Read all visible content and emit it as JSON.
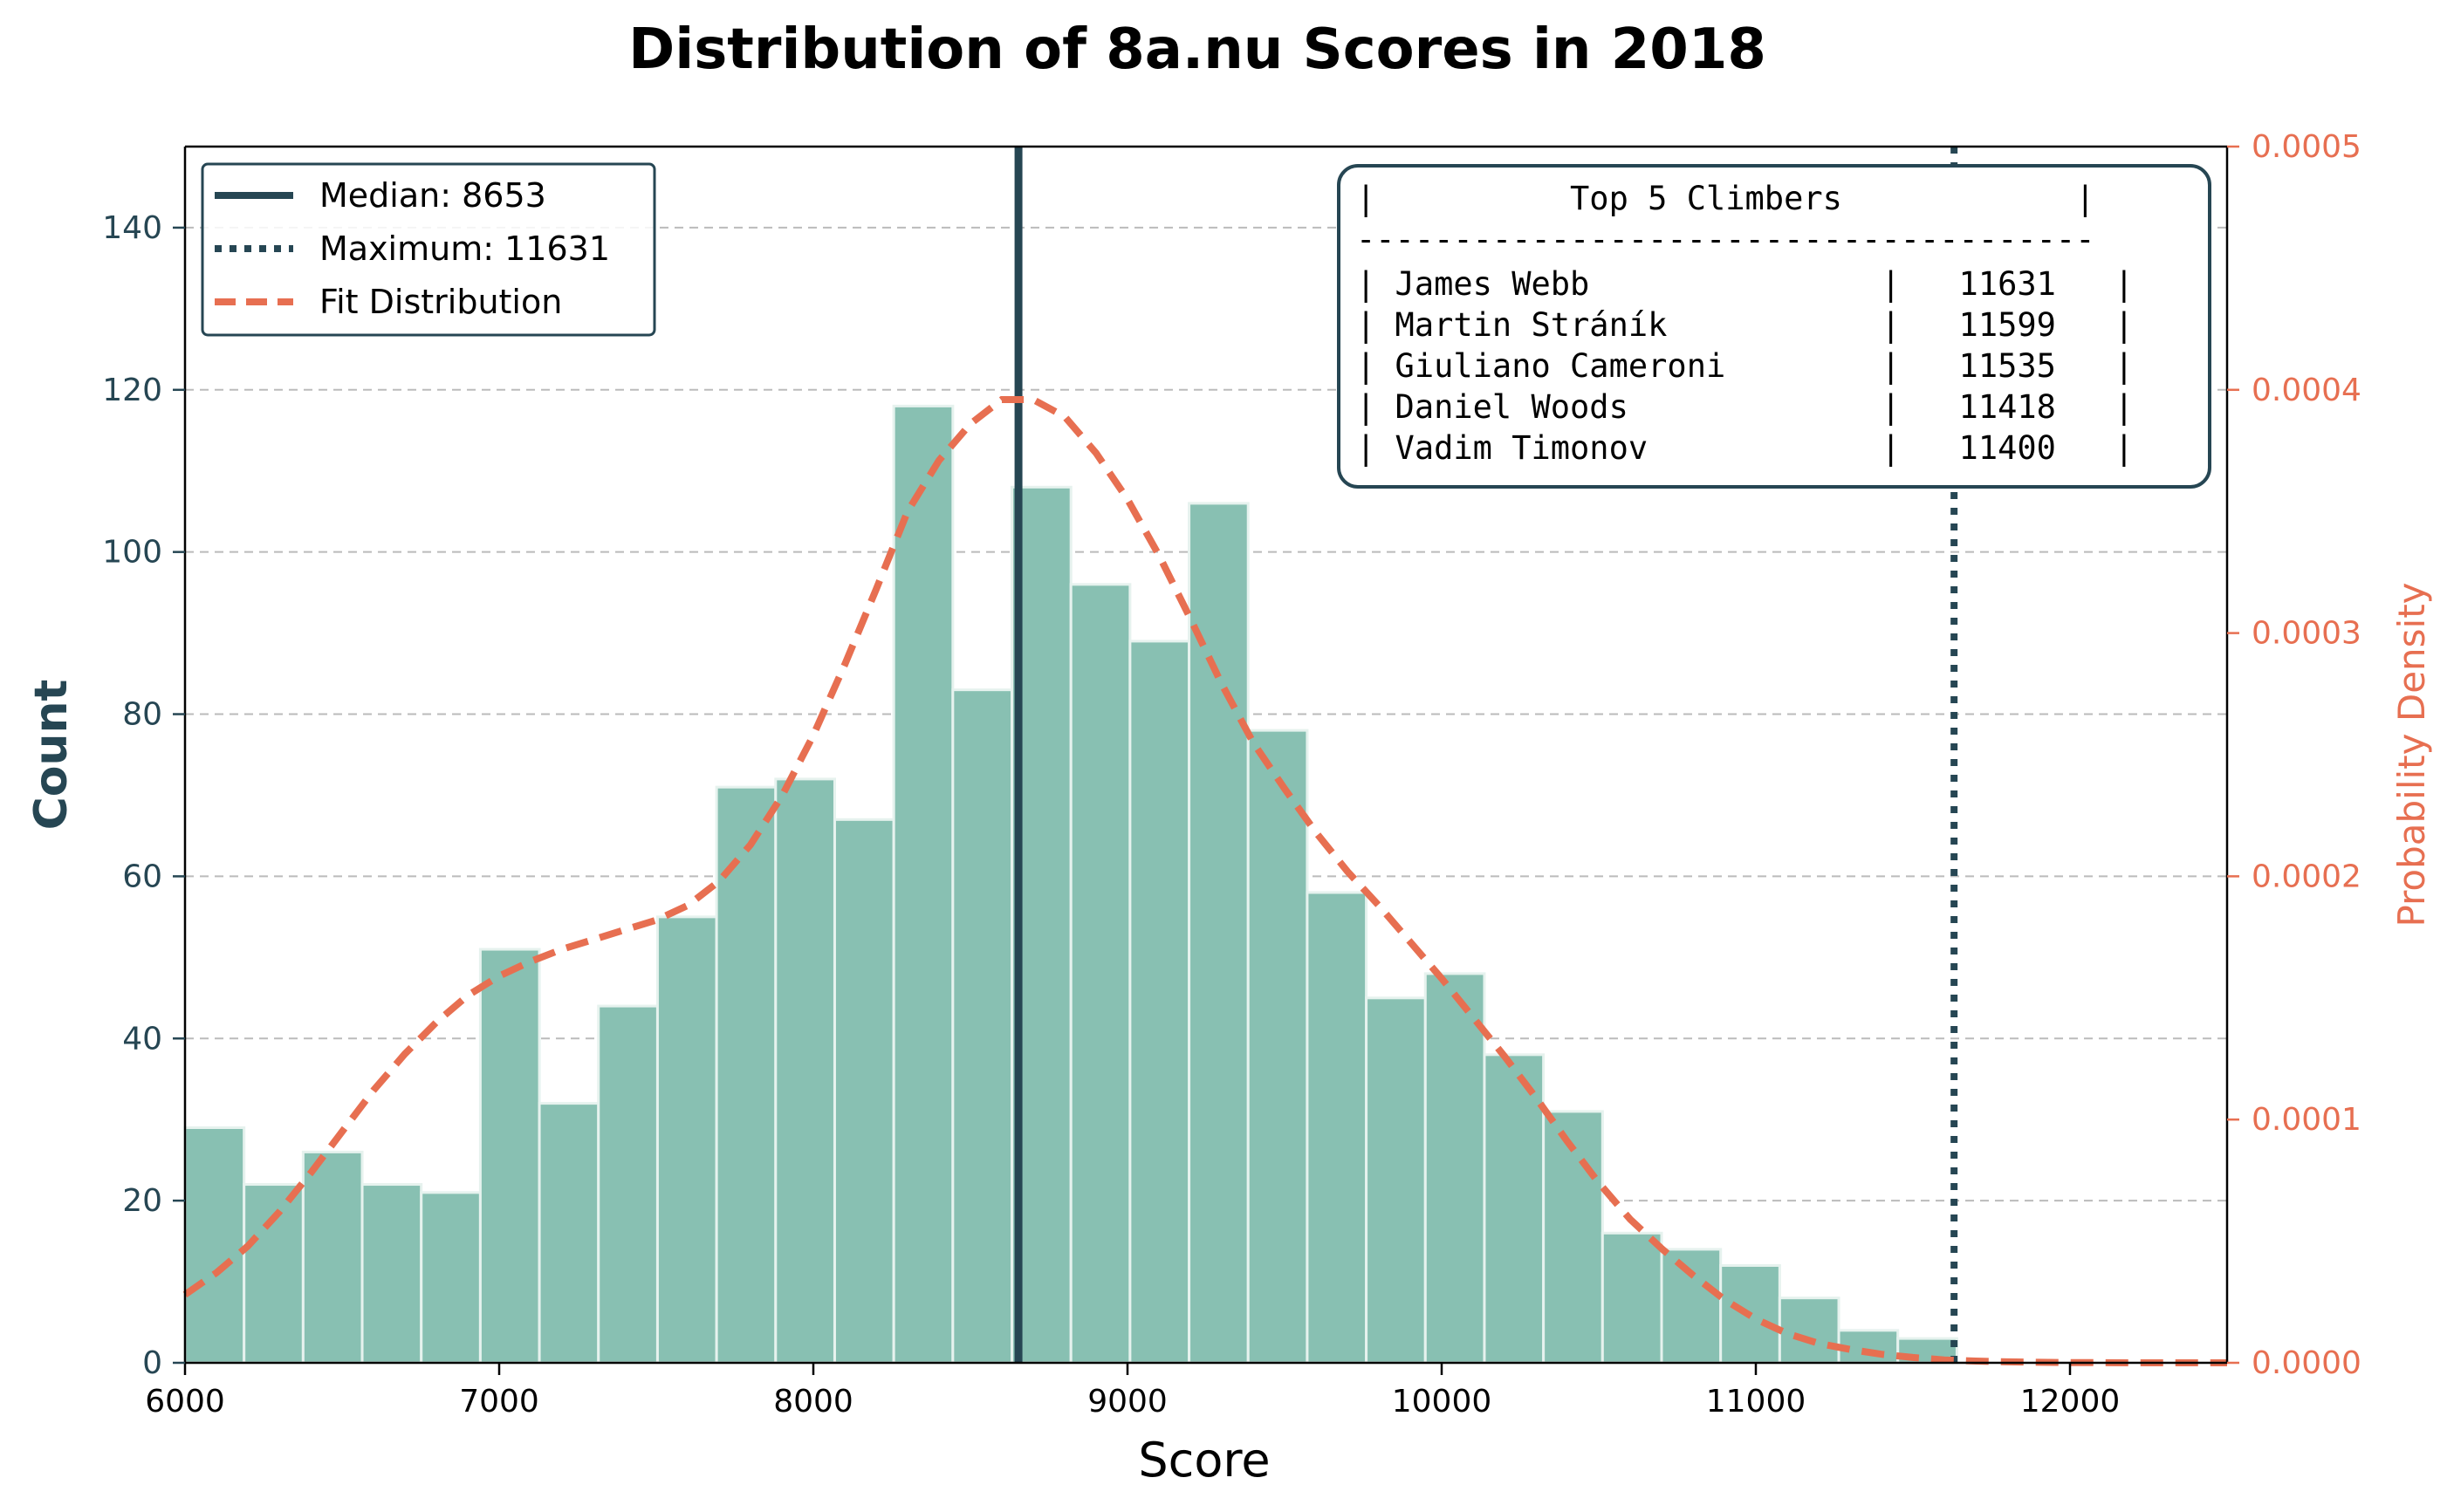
{
  "chart_data": {
    "type": "bar",
    "title": "Distribution of 8a.nu Scores in 2018",
    "xlabel": "Score",
    "ylabel": "Count",
    "y2label": "Probability Density",
    "xlim": [
      6000,
      12500
    ],
    "ylim": [
      0,
      150
    ],
    "y2lim": [
      0,
      0.0005
    ],
    "grid": "y-dashed",
    "x_ticks": [
      6000,
      7000,
      8000,
      9000,
      10000,
      11000,
      12000
    ],
    "y_ticks": [
      0,
      20,
      40,
      60,
      80,
      100,
      120,
      140
    ],
    "y2_ticks": [
      "0.0000",
      "0.0001",
      "0.0002",
      "0.0003",
      "0.0004",
      "0.0005"
    ],
    "bin_width": 188,
    "bins_start": [
      6000,
      6188,
      6376,
      6564,
      6752,
      6940,
      7128,
      7316,
      7504,
      7692,
      7880,
      8068,
      8256,
      8444,
      8632,
      8820,
      9008,
      9196,
      9384,
      9572,
      9760,
      9948,
      10136,
      10324,
      10512,
      10700,
      10888,
      11076,
      11264,
      11452
    ],
    "counts": [
      29,
      22,
      26,
      22,
      21,
      51,
      32,
      44,
      55,
      71,
      72,
      67,
      118,
      83,
      108,
      96,
      89,
      106,
      78,
      58,
      45,
      48,
      38,
      31,
      16,
      14,
      12,
      8,
      4,
      3
    ],
    "fit_x": [
      6000,
      6100,
      6200,
      6300,
      6400,
      6500,
      6600,
      6700,
      6800,
      6900,
      7000,
      7100,
      7200,
      7300,
      7400,
      7500,
      7600,
      7700,
      7800,
      7900,
      8000,
      8100,
      8200,
      8300,
      8400,
      8500,
      8600,
      8700,
      8800,
      8900,
      9000,
      9100,
      9200,
      9300,
      9400,
      9500,
      9600,
      9700,
      9800,
      9900,
      10000,
      10100,
      10200,
      10300,
      10400,
      10500,
      10600,
      10700,
      10800,
      10900,
      11000,
      11100,
      11200,
      11300,
      11400,
      11500,
      11600,
      11700,
      11800,
      11900,
      12000,
      12200,
      12500
    ],
    "fit_y": [
      2.8e-05,
      3.7e-05,
      4.8e-05,
      6.2e-05,
      7.8e-05,
      9.5e-05,
      0.000112,
      0.000127,
      0.00014,
      0.000151,
      0.000159,
      0.000165,
      0.00017,
      0.000174,
      0.000178,
      0.000182,
      0.000188,
      0.000198,
      0.000213,
      0.000233,
      0.000258,
      0.000287,
      0.000318,
      0.00035,
      0.000371,
      0.000386,
      0.000396,
      0.000396,
      0.000389,
      0.000374,
      0.000355,
      0.000332,
      0.000306,
      0.000279,
      0.000255,
      0.000236,
      0.000218,
      0.000202,
      0.000188,
      0.000173,
      0.000158,
      0.000142,
      0.000126,
      0.000109,
      9.1e-05,
      7.4e-05,
      5.9e-05,
      4.7e-05,
      3.6e-05,
      2.6e-05,
      1.8e-05,
      1.2e-05,
      8e-06,
      5.5e-06,
      3.5e-06,
      2.2e-06,
      1.2e-06,
      7e-07,
      4e-07,
      2e-07,
      1e-07,
      0.0,
      0.0
    ],
    "median": 8653,
    "maximum": 11631,
    "legend_position": "top-left",
    "legend": [
      {
        "label": "Median: 8653",
        "style": "solid"
      },
      {
        "label": "Maximum: 11631",
        "style": "dotted"
      },
      {
        "label": "Fit Distribution",
        "style": "dashed"
      }
    ],
    "table_position": "top-right",
    "table_lines": [
      "|          Top 5 Climbers            |",
      "--------------------------------------",
      "| James Webb               |   11631   |",
      "| Martin Stráník           |   11599   |",
      "| Giuliano Cameroni        |   11535   |",
      "| Daniel Woods             |   11418   |",
      "| Vadim Timonov            |   11400   |"
    ],
    "colors": {
      "bar": "#88c0b2",
      "bar_edge": "#e6f2ee",
      "median": "#264653",
      "maximum": "#264653",
      "fit": "#e76f51",
      "left_axis": "#264653",
      "right_axis": "#e76f51",
      "grid": "#bbbbbb"
    }
  }
}
